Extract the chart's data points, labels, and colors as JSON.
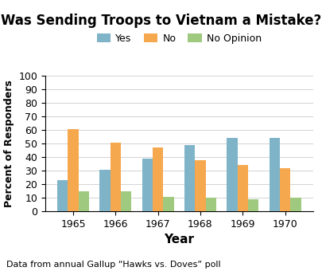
{
  "title": "Was Sending Troops to Vietnam a Mistake?",
  "xlabel": "Year",
  "ylabel": "Percent of Responders",
  "footnote": "Data from annual Gallup “Hawks vs. Doves” poll",
  "years": [
    1965,
    1966,
    1967,
    1968,
    1969,
    1970
  ],
  "yes": [
    23,
    31,
    39,
    49,
    54,
    54
  ],
  "no": [
    61,
    51,
    47,
    38,
    34,
    32
  ],
  "no_opinion": [
    15,
    15,
    11,
    10,
    9,
    10
  ],
  "colors": {
    "yes": "#7fb3c8",
    "no": "#f5a84e",
    "no_opinion": "#9ec97f"
  },
  "ylim": [
    0,
    100
  ],
  "yticks": [
    0,
    10,
    20,
    30,
    40,
    50,
    60,
    70,
    80,
    90,
    100
  ],
  "legend_labels": [
    "Yes",
    "No",
    "No Opinion"
  ],
  "bar_width": 0.25
}
